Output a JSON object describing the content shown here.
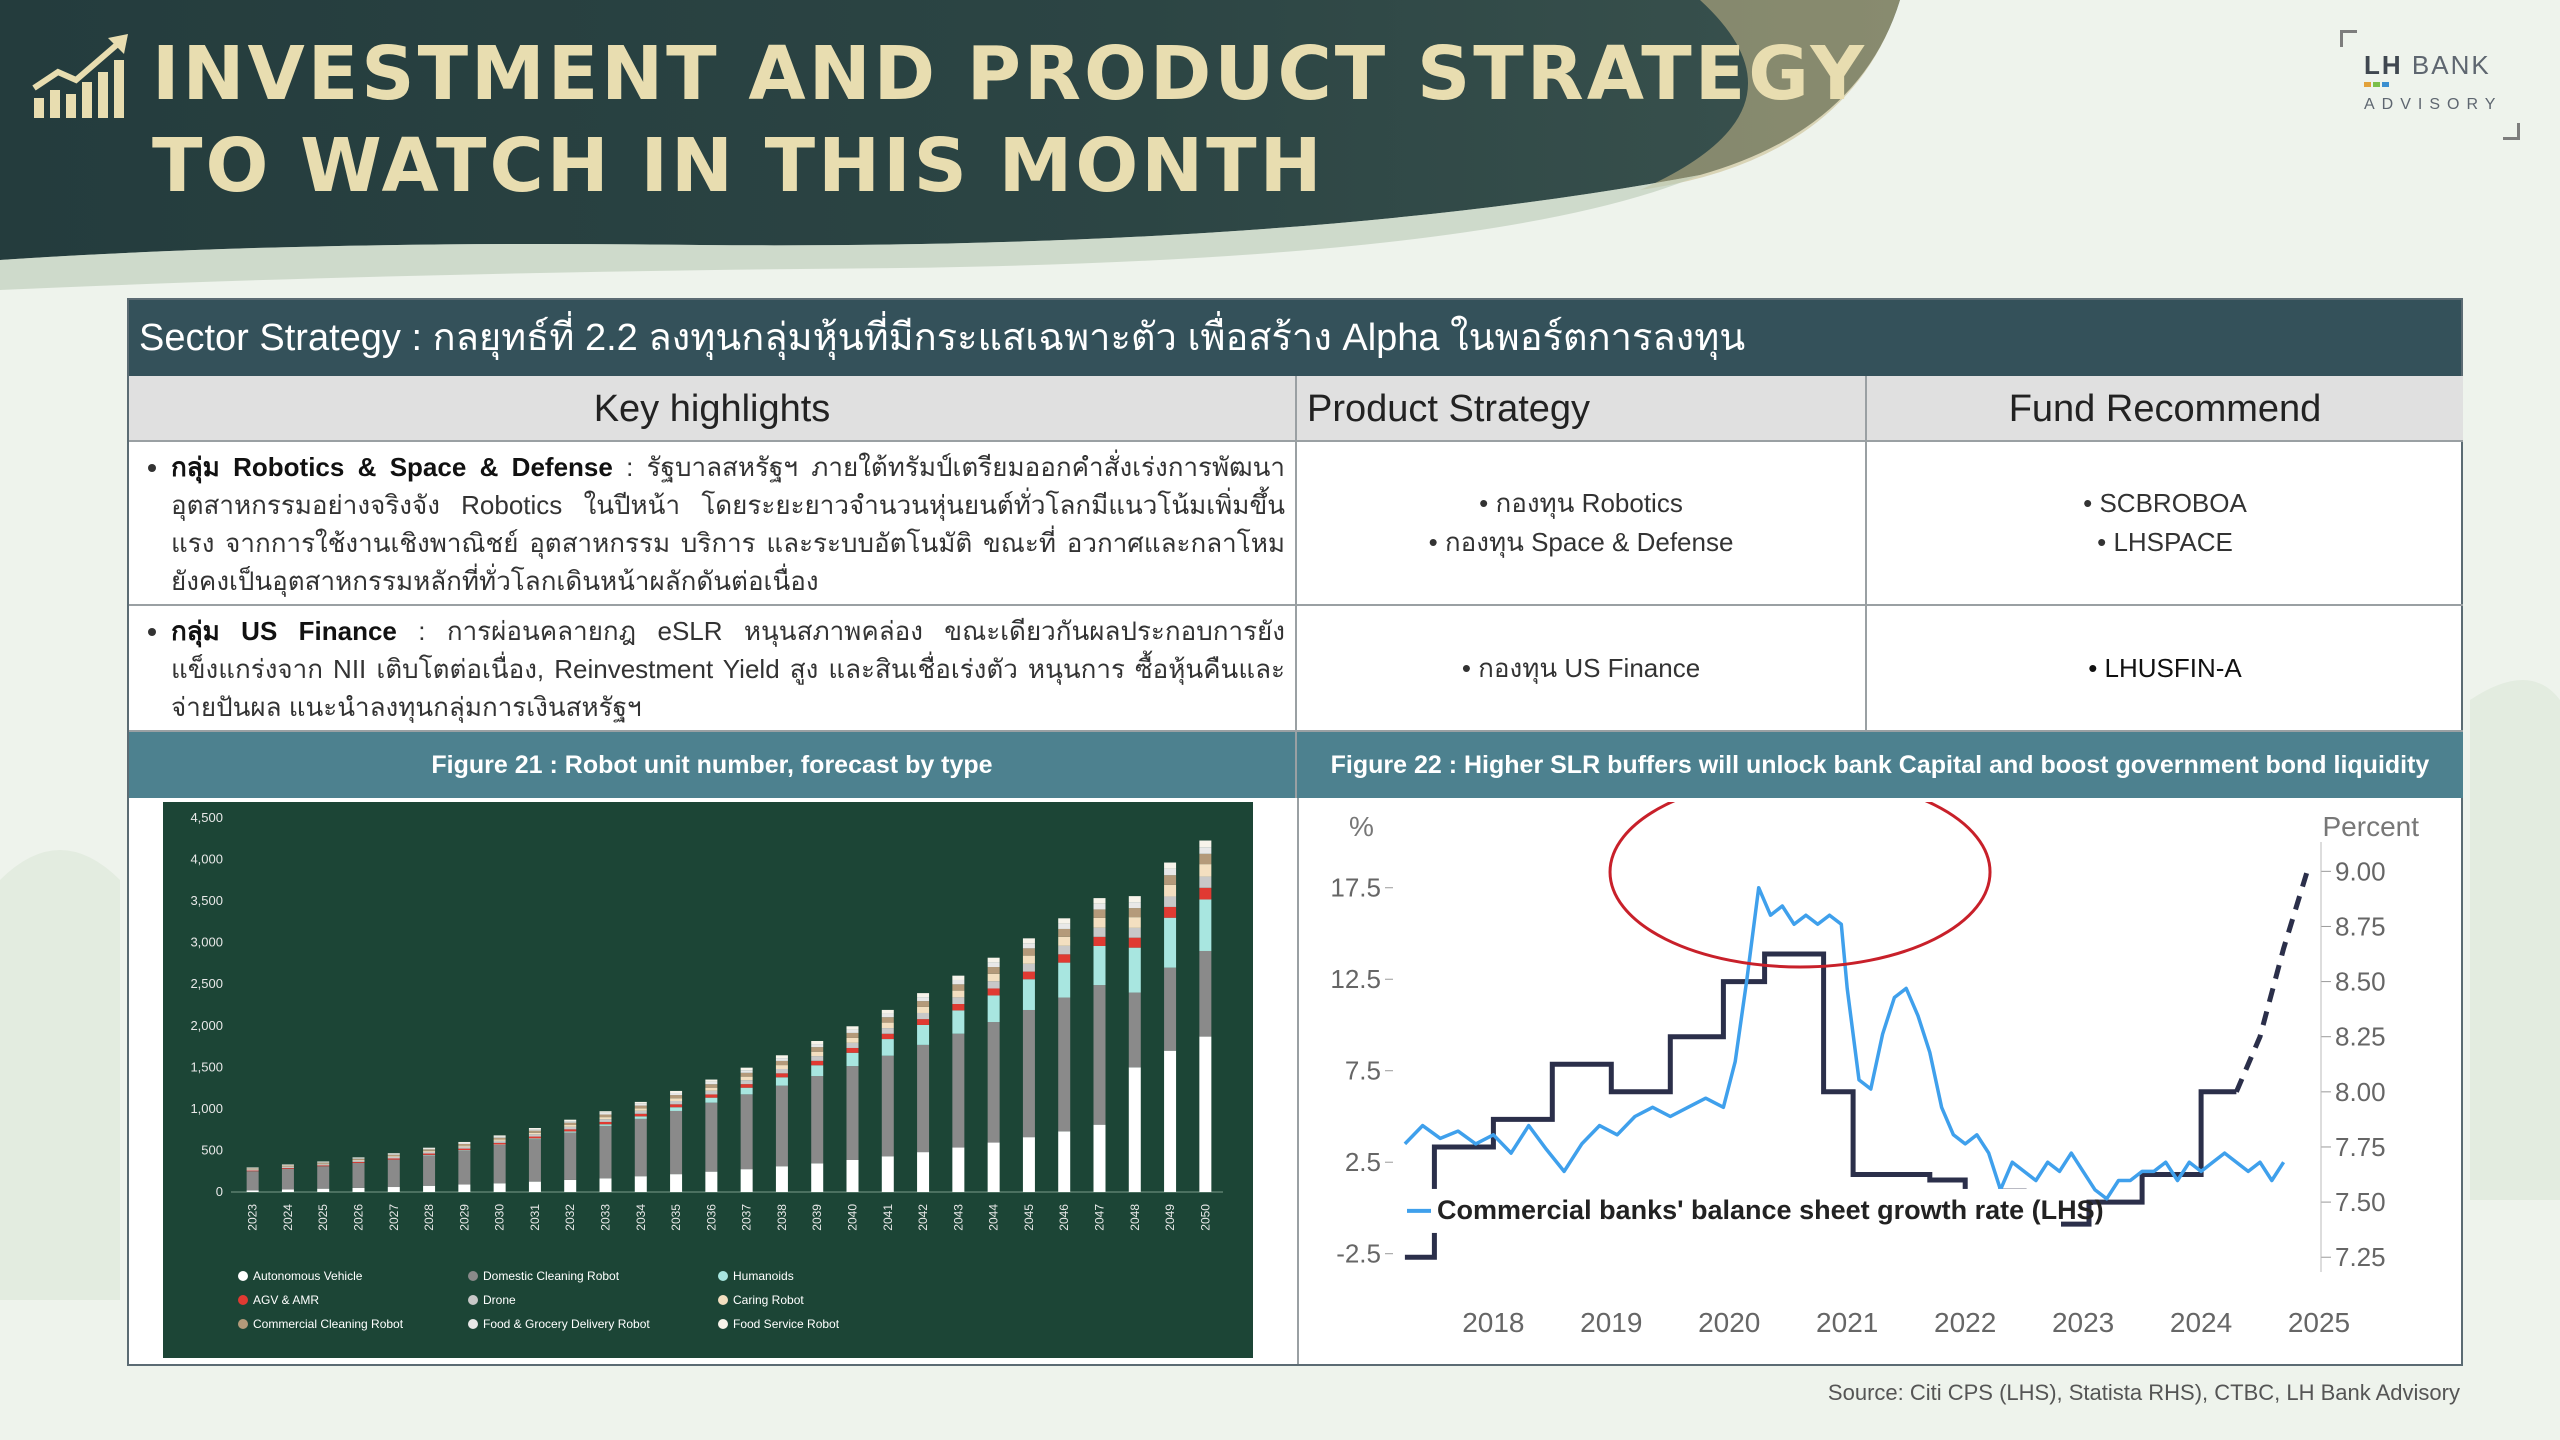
{
  "header": {
    "title_line1": "INVESTMENT AND PRODUCT STRATEGY",
    "title_line2": "TO WATCH IN THIS MONTH",
    "logo_brand_a": "LH",
    "logo_brand_b": "BANK",
    "logo_sub": "ADVISORY"
  },
  "table": {
    "sector_title": "Sector Strategy : กลยุทธ์ที่ 2.2 ลงทุนกลุ่มหุ้นที่มีกระแสเฉพาะตัว เพื่อสร้าง Alpha ในพอร์ตการลงทุน",
    "headers": [
      "Key highlights",
      "Product Strategy",
      "Fund Recommend"
    ],
    "rows": [
      {
        "highlight_bold": "กลุ่ม Robotics & Space & Defense",
        "highlight_text": " : รัฐบาลสหรัฐฯ ภายใต้ทรัมป์เตรียมออกคำสั่งเร่งการพัฒนาอุตสาหกรรมอย่างจริงจัง Robotics ในปีหน้า โดยระยะยาวจำนวนหุ่นยนต์ทั่วโลกมีแนวโน้มเพิ่มขึ้นแรง จากการใช้งานเชิงพาณิชย์ อุตสาหกรรม บริการ และระบบอัตโนมัติ ขณะที่ อวกาศและกลาโหม ยังคงเป็นอุตสาหกรรมหลักที่ทั่วโลกเดินหน้าผลักดันต่อเนื่อง",
        "products": [
          "กองทุน Robotics",
          "กองทุน Space & Defense"
        ],
        "funds": [
          "SCBROBOA",
          "LHSPACE"
        ]
      },
      {
        "highlight_bold": "กลุ่ม US Finance",
        "highlight_text": " : การผ่อนคลายกฎ eSLR หนุนสภาพคล่อง ขณะเดียวกันผลประกอบการยังแข็งแกร่งจาก NII เติบโตต่อเนื่อง, Reinvestment Yield สูง และสินเชื่อเร่งตัว หนุนการ ซื้อหุ้นคืนและจ่ายปันผล แนะนำลงทุนกลุ่มการเงินสหรัฐฯ",
        "products": [
          "กองทุน US Finance"
        ],
        "funds": [
          "LHUSFIN-A"
        ]
      }
    ]
  },
  "figures": {
    "fig21_title": "Figure 21 : Robot unit number, forecast by type",
    "fig22_title": "Figure 22 : Higher SLR buffers will unlock bank Capital and boost government bond liquidity"
  },
  "source": "Source: Citi CPS (LHS), Statista RHS), CTBC, LH Bank Advisory",
  "colors": {
    "dark_teal": "#34515a",
    "figure_bar": "#4d818f",
    "title_gold": "#e8ddb0",
    "chart21_bg": "#1c4536",
    "autonomous": "#ffffff",
    "domestic": "#8a8a8a",
    "humanoids": "#a8e6e0",
    "agv": "#e03a32",
    "drone": "#c8c8c8",
    "caring": "#f3dfc0",
    "commercial_cleaning": "#b49a7a",
    "food_grocery": "#e8e8e8",
    "food_service": "#f7f3ea",
    "lhs_line": "#3fa0ec",
    "rhs_line": "#2b2f4a",
    "circle": "#c8202a"
  },
  "chart_data": [
    {
      "type": "bar",
      "stacked": true,
      "categories": [
        "2023",
        "2024",
        "2025",
        "2026",
        "2027",
        "2028",
        "2029",
        "2030",
        "2031",
        "2032",
        "2033",
        "2034",
        "2035",
        "2036",
        "2037",
        "2038",
        "2039",
        "2040",
        "2041",
        "2042",
        "2043",
        "2044",
        "2045",
        "2046",
        "2047",
        "2048",
        "2049",
        "2050"
      ],
      "ylim": [
        0,
        4500
      ],
      "yticks": [
        "0",
        "500",
        "1,000",
        "1,500",
        "2,000",
        "2,500",
        "3,000",
        "3,500",
        "4,000",
        "4,500"
      ],
      "legend_position": "bottom",
      "series": [
        {
          "name": "Autonomous Vehicle",
          "values": [
            20,
            30,
            40,
            50,
            60,
            75,
            90,
            105,
            125,
            145,
            165,
            190,
            215,
            245,
            275,
            310,
            345,
            385,
            430,
            480,
            535,
            595,
            660,
            730,
            810,
            1500,
            1700,
            1870
          ]
        },
        {
          "name": "Domestic Cleaning Robot",
          "values": [
            230,
            250,
            270,
            300,
            330,
            370,
            410,
            460,
            510,
            570,
            630,
            690,
            760,
            830,
            900,
            970,
            1050,
            1130,
            1210,
            1290,
            1370,
            1450,
            1530,
            1610,
            1680,
            900,
            1000,
            1030
          ]
        },
        {
          "name": "Humanoids",
          "values": [
            0,
            0,
            0,
            0,
            0,
            2,
            4,
            6,
            10,
            14,
            20,
            30,
            45,
            60,
            80,
            100,
            130,
            160,
            200,
            240,
            280,
            320,
            370,
            420,
            470,
            540,
            600,
            620
          ]
        },
        {
          "name": "AGV & AMR",
          "values": [
            8,
            9,
            10,
            12,
            14,
            16,
            18,
            20,
            22,
            25,
            28,
            31,
            35,
            39,
            43,
            48,
            53,
            58,
            64,
            70,
            77,
            84,
            92,
            100,
            110,
            120,
            130,
            140
          ]
        },
        {
          "name": "Drone",
          "values": [
            12,
            13,
            14,
            16,
            18,
            20,
            22,
            24,
            27,
            30,
            33,
            36,
            40,
            44,
            48,
            52,
            57,
            62,
            68,
            74,
            80,
            87,
            94,
            102,
            110,
            118,
            126,
            135
          ]
        },
        {
          "name": "Caring Robot",
          "values": [
            5,
            6,
            7,
            8,
            10,
            12,
            14,
            16,
            19,
            22,
            25,
            29,
            33,
            37,
            42,
            47,
            53,
            59,
            66,
            73,
            81,
            89,
            98,
            108,
            118,
            129,
            140,
            150
          ]
        },
        {
          "name": "Commercial Cleaning Robot",
          "values": [
            10,
            11,
            12,
            14,
            16,
            18,
            20,
            22,
            25,
            28,
            31,
            34,
            38,
            42,
            46,
            50,
            55,
            60,
            65,
            70,
            76,
            82,
            88,
            95,
            102,
            109,
            116,
            124
          ]
        },
        {
          "name": "Food & Grocery Delivery Robot",
          "values": [
            5,
            6,
            7,
            8,
            9,
            10,
            12,
            14,
            16,
            18,
            20,
            22,
            25,
            28,
            31,
            34,
            37,
            40,
            44,
            48,
            52,
            56,
            60,
            64,
            68,
            72,
            76,
            80
          ]
        },
        {
          "name": "Food Service Robot",
          "values": [
            5,
            6,
            7,
            8,
            9,
            10,
            12,
            14,
            16,
            18,
            20,
            22,
            25,
            28,
            31,
            34,
            37,
            40,
            44,
            48,
            52,
            56,
            60,
            64,
            68,
            72,
            76,
            80
          ]
        }
      ]
    },
    {
      "type": "line",
      "ylabel_left": "%",
      "ylabel_right": "Percent",
      "x_ticks": [
        "2018",
        "2019",
        "2020",
        "2021",
        "2022",
        "2023",
        "2024",
        "2025"
      ],
      "xlim": [
        2017.2,
        2025.0
      ],
      "ylim_left": [
        -3.5,
        20
      ],
      "yticks_left": [
        "17.5",
        "12.5",
        "7.5",
        "2.5",
        "-2.5"
      ],
      "ylim_right": [
        7.183,
        9.133
      ],
      "yticks_right": [
        "9.00",
        "8.75",
        "8.50",
        "8.25",
        "8.00",
        "7.75",
        "7.50",
        "7.25"
      ],
      "annotation": "Commercial banks' balance sheet growth rate (LHS)",
      "series": [
        {
          "name": "Commercial banks' balance sheet growth rate (LHS)",
          "axis": "left",
          "x": [
            2017.25,
            2017.4,
            2017.55,
            2017.7,
            2017.85,
            2018.0,
            2018.15,
            2018.3,
            2018.45,
            2018.6,
            2018.75,
            2018.9,
            2019.05,
            2019.2,
            2019.35,
            2019.5,
            2019.65,
            2019.8,
            2019.95,
            2020.05,
            2020.15,
            2020.25,
            2020.35,
            2020.45,
            2020.55,
            2020.65,
            2020.75,
            2020.85,
            2020.95,
            2021.0,
            2021.1,
            2021.2,
            2021.3,
            2021.4,
            2021.5,
            2021.6,
            2021.7,
            2021.8,
            2021.9,
            2022.0,
            2022.1,
            2022.2,
            2022.3,
            2022.4,
            2022.5,
            2022.6,
            2022.7,
            2022.8,
            2022.9,
            2023.0,
            2023.1,
            2023.2,
            2023.3,
            2023.4,
            2023.5,
            2023.6,
            2023.7,
            2023.8,
            2023.9,
            2024.0,
            2024.1,
            2024.2,
            2024.3,
            2024.4,
            2024.5,
            2024.6,
            2024.7
          ],
          "y": [
            3.5,
            4.5,
            3.8,
            4.2,
            3.5,
            4.0,
            3.0,
            4.5,
            3.2,
            2.0,
            3.5,
            4.5,
            4.0,
            5.0,
            5.5,
            5.0,
            5.5,
            6.0,
            5.5,
            8.0,
            12.5,
            17.5,
            16.0,
            16.5,
            15.5,
            16.0,
            15.5,
            16.0,
            15.5,
            12.0,
            7.0,
            6.5,
            9.5,
            11.5,
            12.0,
            10.5,
            8.5,
            5.5,
            4.0,
            3.5,
            4.0,
            3.0,
            1.0,
            2.5,
            2.0,
            1.5,
            2.5,
            2.0,
            3.0,
            2.0,
            1.0,
            0.5,
            1.5,
            1.5,
            2.0,
            2.0,
            2.5,
            1.5,
            2.5,
            2.0,
            2.5,
            3.0,
            2.5,
            2.0,
            2.5,
            1.5,
            2.5
          ]
        },
        {
          "name": "RHS step line",
          "axis": "right",
          "x": [
            2017.25,
            2017.5,
            2017.5,
            2018.0,
            2018.0,
            2018.5,
            2018.5,
            2019.0,
            2019.0,
            2019.5,
            2019.5,
            2019.95,
            2019.95,
            2020.3,
            2020.3,
            2020.8,
            2020.8,
            2021.05,
            2021.05,
            2021.7,
            2021.7,
            2022.0,
            2022.0,
            2022.3,
            2022.3,
            2022.5,
            2022.5,
            2022.7,
            2022.7,
            2023.05,
            2023.05,
            2023.5,
            2023.5,
            2024.0,
            2024.0,
            2024.3
          ],
          "y": [
            7.25,
            7.25,
            7.75,
            7.75,
            7.875,
            7.875,
            8.125,
            8.125,
            8.0,
            8.0,
            8.25,
            8.25,
            8.5,
            8.5,
            8.625,
            8.625,
            8.0,
            8.0,
            7.625,
            7.625,
            7.6,
            7.6,
            7.5,
            7.5,
            7.55,
            7.55,
            7.5,
            7.5,
            7.4,
            7.4,
            7.5,
            7.5,
            7.625,
            7.625,
            8.0,
            8.0
          ]
        },
        {
          "name": "RHS forecast (dashed)",
          "axis": "right",
          "x": [
            2024.3,
            2024.5,
            2024.7,
            2024.9
          ],
          "y": [
            8.0,
            8.25,
            8.65,
            9.0
          ]
        }
      ]
    }
  ]
}
